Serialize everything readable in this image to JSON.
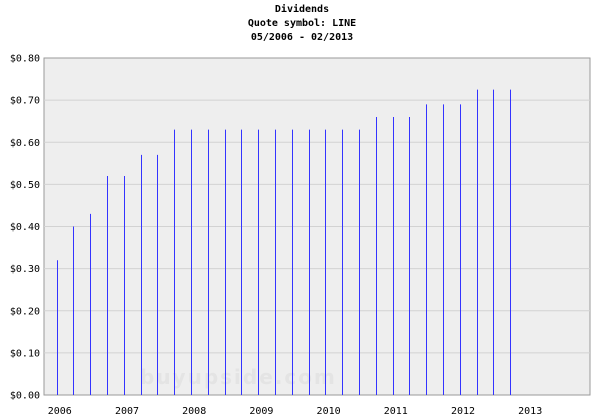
{
  "chart_data": {
    "type": "bar",
    "title": "Dividends",
    "subtitle": "Quote symbol: LINE",
    "date_range": "05/2006 - 02/2013",
    "xlabel": "",
    "ylabel": "",
    "ylim": [
      0,
      0.8
    ],
    "y_ticks": [
      "$0.00",
      "$0.10",
      "$0.20",
      "$0.30",
      "$0.40",
      "$0.50",
      "$0.60",
      "$0.70",
      "$0.80"
    ],
    "x_ticks": [
      "2006",
      "2007",
      "2008",
      "2009",
      "2010",
      "2011",
      "2012",
      "2013"
    ],
    "grid": true,
    "legend": "none",
    "bar_color": "#3333ff",
    "plot_background": "#eeeeee",
    "watermark": "buyupside.com",
    "x": [
      "2006-05",
      "2006-08",
      "2006-11",
      "2007-02",
      "2007-05",
      "2007-08",
      "2007-11",
      "2008-02",
      "2008-05",
      "2008-08",
      "2008-11",
      "2009-02",
      "2009-05",
      "2009-08",
      "2009-11",
      "2010-02",
      "2010-05",
      "2010-08",
      "2010-11",
      "2011-02",
      "2011-05",
      "2011-08",
      "2011-11",
      "2012-02",
      "2012-05",
      "2012-08",
      "2012-11",
      "2013-02"
    ],
    "values": [
      0.32,
      0.4,
      0.43,
      0.52,
      0.52,
      0.57,
      0.57,
      0.63,
      0.63,
      0.63,
      0.63,
      0.63,
      0.63,
      0.63,
      0.63,
      0.63,
      0.63,
      0.63,
      0.63,
      0.66,
      0.66,
      0.66,
      0.69,
      0.69,
      0.69,
      0.725,
      0.725,
      0.725
    ]
  }
}
